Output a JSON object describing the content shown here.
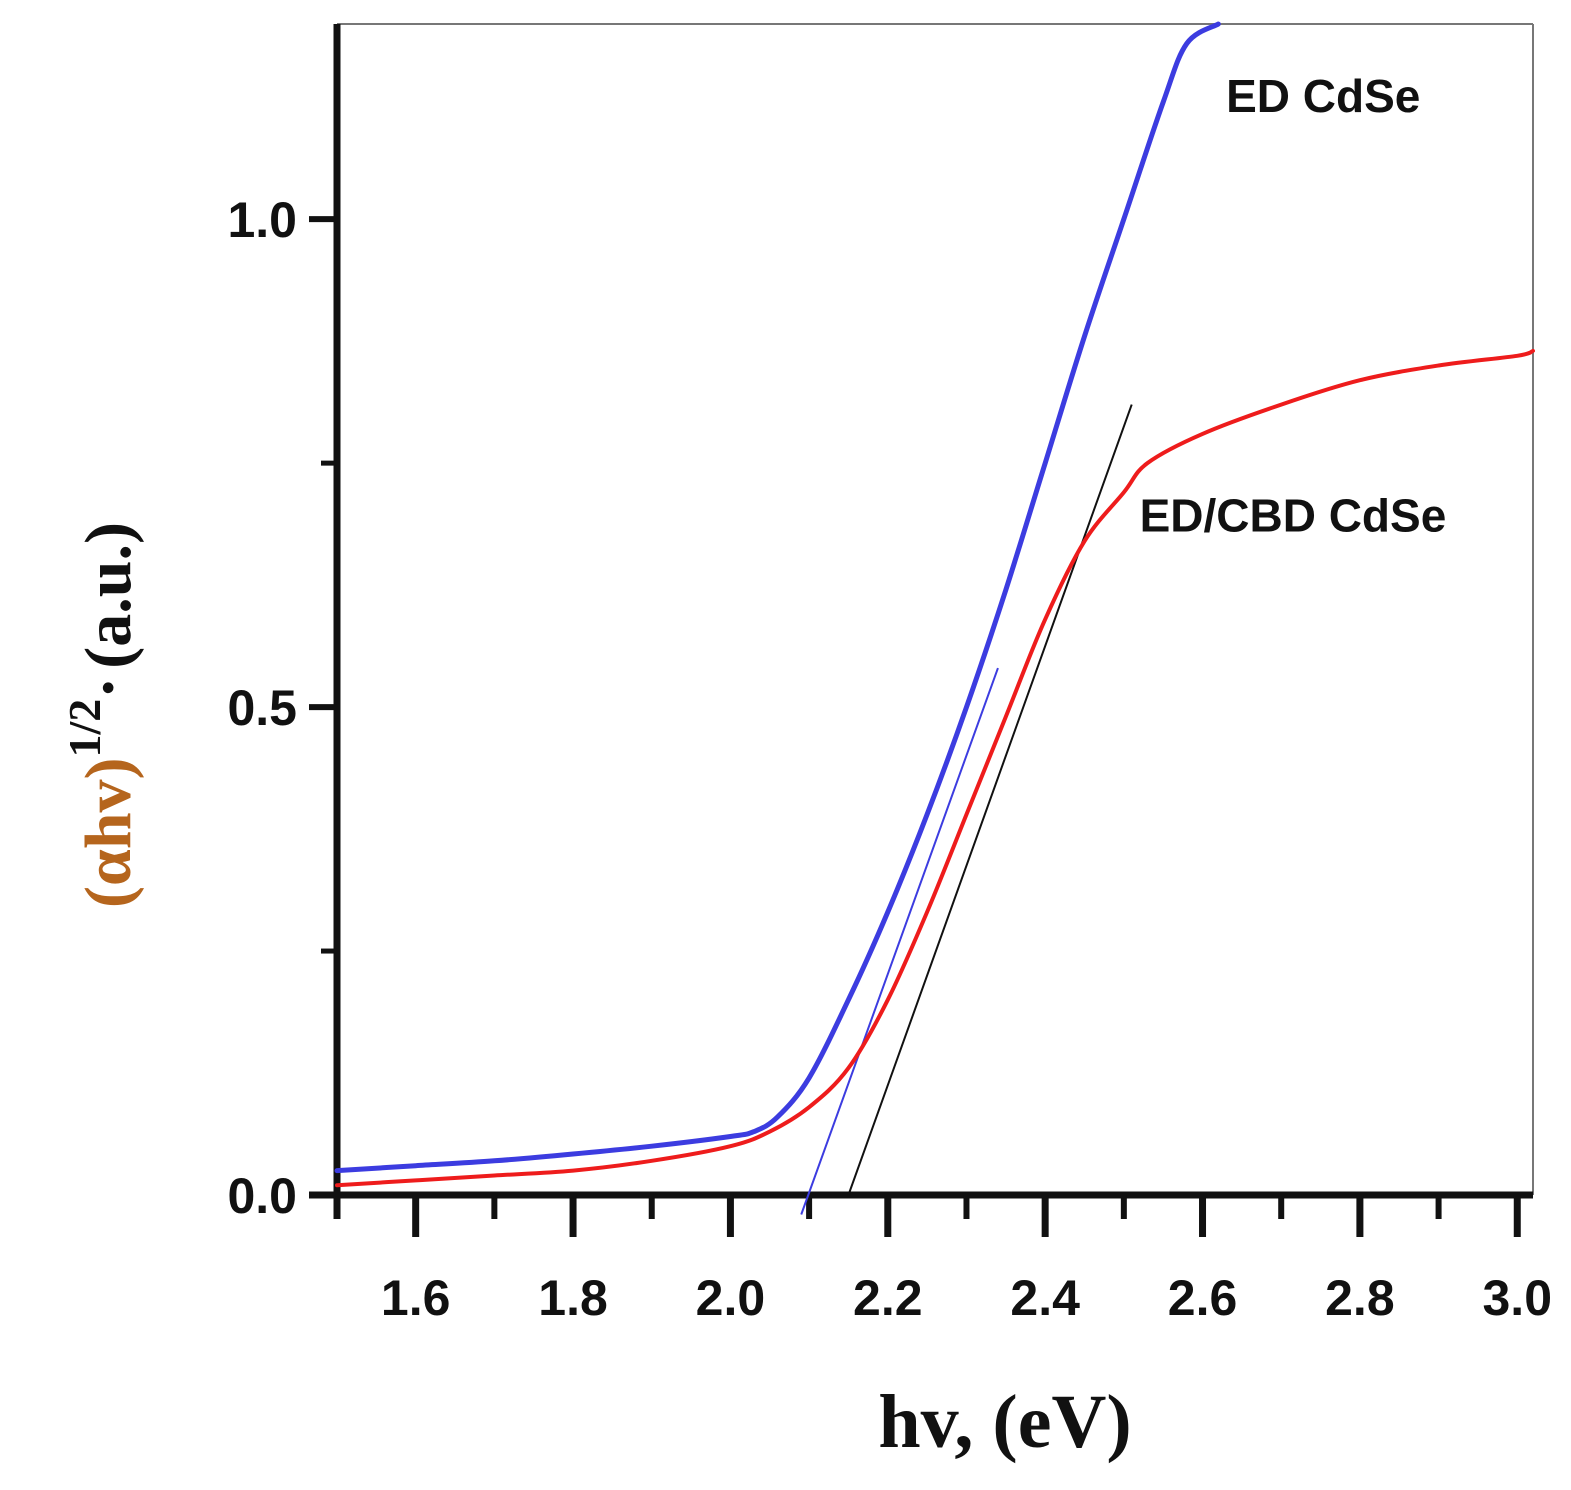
{
  "chart_data": {
    "type": "line",
    "title": "",
    "xlabel": "hv, (eV)",
    "ylabel": {
      "main": "(αhv)",
      "superscript": "1/2",
      "dot": "·",
      "units": "(a.u.)"
    },
    "xlim": [
      1.5,
      3.02
    ],
    "ylim": [
      0.0,
      1.2
    ],
    "x_ticks": [
      1.6,
      1.8,
      2.0,
      2.2,
      2.4,
      2.6,
      2.8,
      3.0
    ],
    "x_tick_labels": [
      "1.6",
      "1.8",
      "2.0",
      "2.2",
      "2.4",
      "2.6",
      "2.8",
      "3.0"
    ],
    "x_minor_ticks": [
      1.5,
      1.7,
      1.9,
      2.1,
      2.3,
      2.5,
      2.7,
      2.9
    ],
    "y_ticks": [
      0.0,
      0.5,
      1.0
    ],
    "y_tick_labels": [
      "0.0",
      "0.5",
      "1.0"
    ],
    "y_minor_ticks": [
      0.25,
      0.75
    ],
    "grid": false,
    "series": [
      {
        "name": "ED CdSe",
        "color": "#3c3ce0",
        "x": [
          1.5,
          1.6,
          1.7,
          1.8,
          1.9,
          2.0,
          2.03,
          2.06,
          2.1,
          2.15,
          2.2,
          2.25,
          2.3,
          2.35,
          2.4,
          2.45,
          2.5,
          2.55,
          2.58,
          2.62
        ],
        "values": [
          0.025,
          0.03,
          0.035,
          0.042,
          0.05,
          0.06,
          0.065,
          0.08,
          0.12,
          0.2,
          0.29,
          0.39,
          0.5,
          0.62,
          0.75,
          0.88,
          1.0,
          1.12,
          1.18,
          1.2
        ]
      },
      {
        "name": "ED/CBD CdSe",
        "color": "#ee1c1c",
        "x": [
          1.5,
          1.6,
          1.7,
          1.8,
          1.9,
          2.0,
          2.05,
          2.1,
          2.15,
          2.2,
          2.25,
          2.3,
          2.35,
          2.4,
          2.45,
          2.5,
          2.53,
          2.6,
          2.7,
          2.8,
          2.9,
          3.0,
          3.02
        ],
        "values": [
          0.01,
          0.015,
          0.02,
          0.025,
          0.035,
          0.05,
          0.065,
          0.09,
          0.13,
          0.2,
          0.29,
          0.39,
          0.49,
          0.59,
          0.67,
          0.72,
          0.75,
          0.78,
          0.81,
          0.835,
          0.85,
          0.86,
          0.865
        ]
      }
    ],
    "fit_lines": [
      {
        "name": "ED CdSe tangent",
        "color": "#3c3ce0",
        "x": [
          2.09,
          2.34
        ],
        "values": [
          -0.02,
          0.54
        ]
      },
      {
        "name": "ED/CBD CdSe tangent",
        "color": "#111111",
        "x": [
          2.15,
          2.51
        ],
        "values": [
          0.0,
          0.81
        ]
      }
    ],
    "annotations": [
      {
        "text": "ED CdSe",
        "x": 2.63,
        "y": 1.11
      },
      {
        "text": "ED/CBD CdSe",
        "x": 2.52,
        "y": 0.68
      }
    ]
  }
}
